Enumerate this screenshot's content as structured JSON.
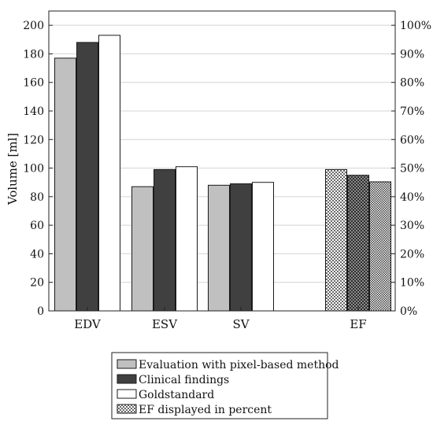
{
  "chart_data": {
    "type": "bar",
    "title": "",
    "xlabel": "",
    "ylabel": "Volume [ml]",
    "ylim": [
      0,
      210
    ],
    "yticks": [
      0,
      20,
      40,
      60,
      80,
      100,
      120,
      140,
      160,
      180,
      200
    ],
    "y2lim": [
      0,
      105
    ],
    "y2ticks": [
      "0%",
      "10%",
      "20%",
      "30%",
      "40%",
      "50%",
      "60%",
      "70%",
      "80%",
      "90%",
      "100%"
    ],
    "grid": true,
    "legend_position": "bottom",
    "categories": [
      "EDV",
      "ESV",
      "SV",
      "EF"
    ],
    "series": [
      {
        "name": "Evaluation with pixel-based method",
        "values": [
          177,
          87,
          88,
          null
        ]
      },
      {
        "name": "Clinical findings",
        "values": [
          188,
          99,
          89,
          null
        ]
      },
      {
        "name": "Goldstandard",
        "values": [
          193,
          101,
          90,
          null
        ]
      },
      {
        "name": "EF displayed in percent",
        "values": [
          null,
          null,
          null,
          null
        ]
      }
    ],
    "ef_percent": [
      49.5,
      47.5,
      45.2
    ],
    "colors": {
      "pixel_based": "#c0c0c0",
      "clinical": "#404040",
      "goldstandard": "#ffffff"
    }
  }
}
